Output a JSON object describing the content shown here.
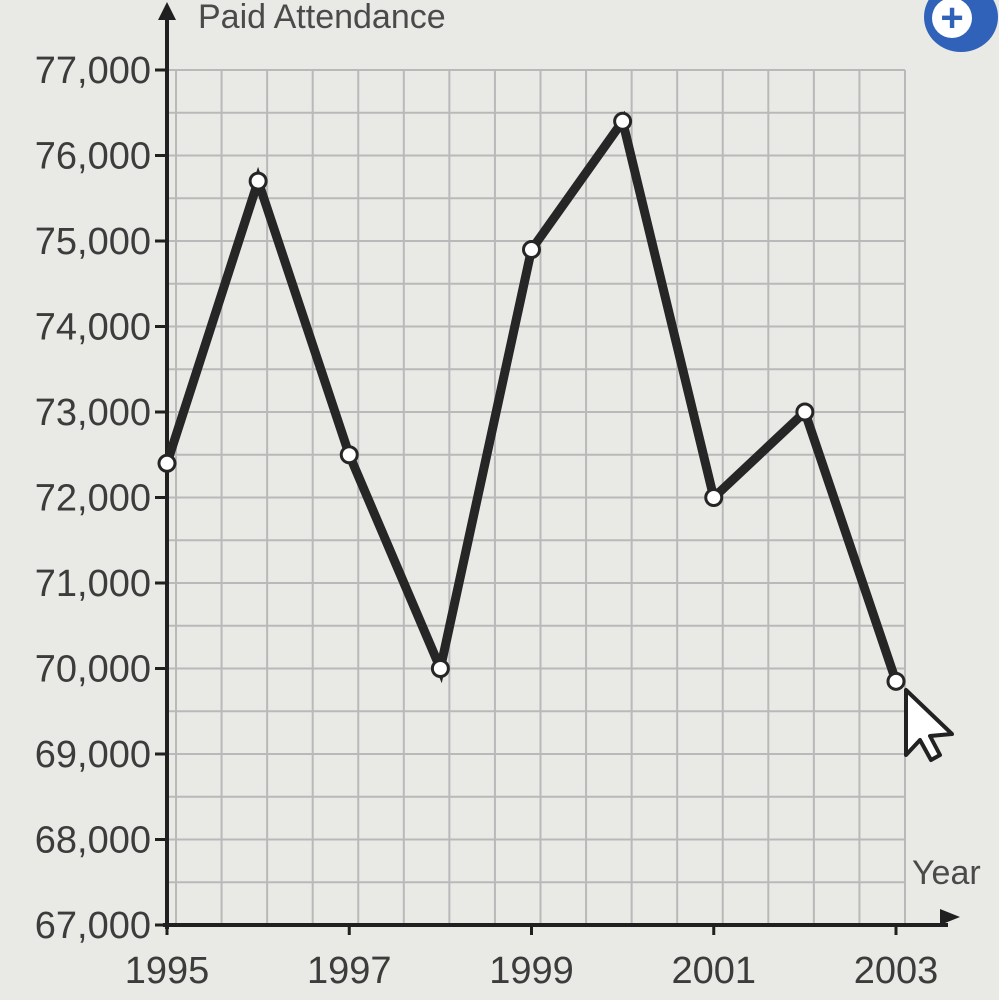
{
  "zoom_button": {
    "symbol": "+"
  },
  "colors": {
    "background": "#e9e9e6",
    "grid": "#b9b9b9",
    "line": "#262626",
    "text": "#3c3c3c"
  },
  "chart_data": {
    "type": "line",
    "ylabel": "Paid Attendance",
    "xlabel": "Year",
    "x": [
      1995,
      1996,
      1997,
      1998,
      1999,
      2000,
      2001,
      2002,
      2003
    ],
    "series": [
      {
        "values": [
          72400,
          75700,
          72500,
          70000,
          74900,
          76400,
          72000,
          73000,
          69850
        ]
      }
    ],
    "xlim": [
      1995,
      2003
    ],
    "ylim": [
      67000,
      77000
    ],
    "x_tick_labels": [
      "1995",
      "1997",
      "1999",
      "2001",
      "2003"
    ],
    "y_tick_labels": [
      "67,000",
      "68,000",
      "69,000",
      "70,000",
      "71,000",
      "72,000",
      "73,000",
      "74,000",
      "75,000",
      "76,000",
      "77,000"
    ],
    "grid": true,
    "markers": "open-circle"
  }
}
